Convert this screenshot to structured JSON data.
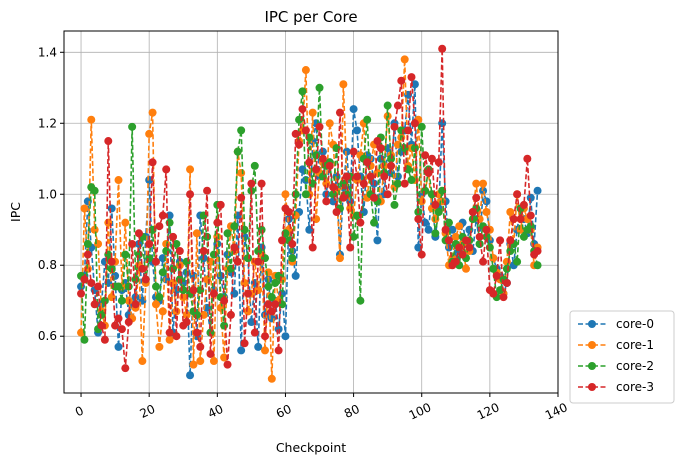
{
  "chart_data": {
    "type": "line",
    "title": "IPC per Core",
    "xlabel": "Checkpoint",
    "ylabel": "IPC",
    "xlim": [
      -5,
      140
    ],
    "ylim": [
      0.44,
      1.46
    ],
    "xticks": [
      0,
      20,
      40,
      60,
      80,
      100,
      120,
      140
    ],
    "yticks": [
      0.6,
      0.8,
      1.0,
      1.2,
      1.4
    ],
    "xtick_labels": [
      "0",
      "20",
      "40",
      "60",
      "80",
      "100",
      "120",
      "140"
    ],
    "ytick_labels": [
      "0.6",
      "0.8",
      "1.0",
      "1.2",
      "1.4"
    ],
    "grid": true,
    "legend_position": "lower-right-outside",
    "line_style": "dashed",
    "marker": "circle",
    "x_start": 0,
    "series": [
      {
        "name": "core-0",
        "color": "#1f77b4",
        "values": [
          0.74,
          0.77,
          0.98,
          0.85,
          0.73,
          0.61,
          0.69,
          0.81,
          0.75,
          0.96,
          0.77,
          0.57,
          0.73,
          0.75,
          0.66,
          0.69,
          0.71,
          0.86,
          0.7,
          0.88,
          1.04,
          0.81,
          0.71,
          0.7,
          0.82,
          0.76,
          0.94,
          0.61,
          0.73,
          0.81,
          0.75,
          0.78,
          0.49,
          0.77,
          0.6,
          0.94,
          0.82,
          0.68,
          0.61,
          0.73,
          0.86,
          0.77,
          0.71,
          0.83,
          0.78,
          0.72,
          0.94,
          0.56,
          0.88,
          0.82,
          0.64,
          0.75,
          0.57,
          0.85,
          0.66,
          0.76,
          0.65,
          0.7,
          0.62,
          0.72,
          0.6,
          0.93,
          0.84,
          0.77,
          0.95,
          1.07,
          1.04,
          0.9,
          1.15,
          1.2,
          1.05,
          1.12,
          1.0,
          1.09,
          0.98,
          1.05,
          0.83,
          1.02,
          1.12,
          0.98,
          1.24,
          1.18,
          1.05,
          0.95,
          1.11,
          1.1,
          1.03,
          0.87,
          1.1,
          1.0,
          1.13,
          1.06,
          1.2,
          1.05,
          1.12,
          1.18,
          1.28,
          1.14,
          1.31,
          0.85,
          1.0,
          0.92,
          0.9,
          1.0,
          0.88,
          0.96,
          1.2,
          0.98,
          0.85,
          0.9,
          0.82,
          0.84,
          0.92,
          0.86,
          0.9,
          0.84,
          0.93,
          0.86,
          1.01,
          0.98,
          0.87,
          0.82,
          0.79,
          0.77,
          0.72,
          0.75,
          0.86,
          0.8,
          0.9,
          0.96,
          0.93,
          0.89,
          0.99,
          0.86,
          1.01
        ]
      },
      {
        "name": "core-1",
        "color": "#ff7f0e",
        "values": [
          0.61,
          0.96,
          0.79,
          1.21,
          0.9,
          0.86,
          0.67,
          0.63,
          0.92,
          0.71,
          0.81,
          1.04,
          0.74,
          0.92,
          0.7,
          0.65,
          0.68,
          0.8,
          0.53,
          0.75,
          1.17,
          1.23,
          0.69,
          0.57,
          0.67,
          0.86,
          0.59,
          0.75,
          0.67,
          0.8,
          0.71,
          0.66,
          1.07,
          0.52,
          0.89,
          0.53,
          0.66,
          0.76,
          0.81,
          0.53,
          0.88,
          0.68,
          0.54,
          0.79,
          0.91,
          0.84,
          1.12,
          1.06,
          0.75,
          0.67,
          0.72,
          0.81,
          0.73,
          0.83,
          0.56,
          0.78,
          0.48,
          0.77,
          0.7,
          0.76,
          1.0,
          0.9,
          0.81,
          0.94,
          1.15,
          1.18,
          1.35,
          1.0,
          1.23,
          0.93,
          1.06,
          1.09,
          1.03,
          1.2,
          1.14,
          1.01,
          0.82,
          1.31,
          1.05,
          0.96,
          0.94,
          1.04,
          1.11,
          1.2,
          0.99,
          1.08,
          1.14,
          1.06,
          0.98,
          1.08,
          1.22,
          1.11,
          1.02,
          1.14,
          1.16,
          1.38,
          1.08,
          1.13,
          1.04,
          1.21,
          0.98,
          1.01,
          1.06,
          0.96,
          0.93,
          1.0,
          0.98,
          0.89,
          0.8,
          0.82,
          0.88,
          0.91,
          0.86,
          0.79,
          0.84,
          0.95,
          1.03,
          0.93,
          1.03,
          0.95,
          0.9,
          0.82,
          0.78,
          0.76,
          0.72,
          0.81,
          0.95,
          0.86,
          1.0,
          0.9,
          0.96,
          0.93,
          0.9,
          0.8,
          0.85
        ]
      },
      {
        "name": "core-2",
        "color": "#2ca02c",
        "values": [
          0.77,
          0.59,
          0.86,
          1.02,
          1.01,
          0.62,
          0.66,
          0.7,
          0.83,
          0.79,
          0.74,
          0.74,
          0.7,
          0.83,
          0.74,
          1.19,
          0.76,
          0.83,
          0.88,
          0.76,
          0.82,
          0.9,
          0.74,
          0.71,
          0.78,
          0.84,
          0.92,
          0.79,
          0.86,
          0.76,
          0.73,
          0.81,
          0.72,
          0.67,
          0.66,
          0.73,
          0.94,
          0.88,
          0.61,
          0.83,
          0.97,
          0.71,
          0.63,
          0.89,
          0.79,
          0.91,
          1.12,
          1.18,
          0.9,
          0.82,
          1.01,
          1.08,
          0.84,
          0.9,
          0.82,
          0.74,
          0.71,
          0.75,
          0.77,
          0.69,
          0.89,
          0.87,
          0.82,
          1.0,
          1.21,
          1.29,
          1.0,
          1.16,
          1.03,
          1.11,
          1.3,
          1.05,
          1.08,
          1.09,
          1.0,
          1.13,
          0.96,
          1.03,
          1.0,
          1.05,
          0.88,
          0.94,
          0.7,
          1.1,
          1.21,
          1.0,
          0.92,
          0.98,
          1.16,
          1.06,
          1.25,
          1.1,
          0.97,
          1.03,
          1.18,
          1.13,
          1.07,
          1.04,
          1.13,
          0.95,
          1.19,
          1.01,
          1.07,
          1.0,
          0.89,
          0.95,
          1.01,
          0.87,
          0.92,
          0.81,
          0.86,
          0.8,
          0.88,
          0.82,
          0.87,
          0.93,
          0.96,
          0.86,
          0.91,
          0.88,
          0.85,
          0.79,
          0.71,
          0.73,
          0.76,
          0.79,
          0.84,
          0.86,
          0.81,
          0.96,
          0.88,
          0.9,
          0.91,
          0.84,
          0.8
        ]
      },
      {
        "name": "core-3",
        "color": "#d62728",
        "values": [
          0.72,
          0.76,
          0.83,
          0.75,
          0.69,
          0.74,
          0.63,
          0.59,
          1.15,
          0.81,
          0.63,
          0.65,
          0.62,
          0.51,
          0.64,
          0.86,
          0.69,
          0.89,
          0.79,
          0.76,
          0.86,
          1.09,
          0.81,
          0.91,
          0.94,
          1.07,
          0.61,
          0.88,
          0.6,
          0.84,
          0.63,
          0.64,
          1.0,
          0.73,
          0.61,
          0.57,
          0.84,
          1.01,
          0.55,
          0.72,
          0.92,
          0.97,
          0.7,
          0.52,
          0.66,
          0.85,
          0.81,
          0.99,
          0.58,
          0.72,
          1.03,
          0.61,
          0.81,
          1.03,
          0.6,
          0.69,
          0.67,
          0.69,
          0.56,
          0.87,
          0.96,
          0.95,
          0.86,
          1.17,
          1.14,
          1.24,
          1.18,
          1.09,
          0.85,
          1.07,
          1.19,
          1.1,
          0.98,
          1.08,
          1.02,
          0.95,
          1.23,
          0.99,
          1.05,
          0.85,
          1.12,
          1.05,
          0.92,
          1.03,
          1.09,
          1.05,
          0.99,
          1.15,
          1.13,
          1.05,
          1.0,
          1.08,
          1.19,
          1.25,
          1.32,
          1.03,
          1.18,
          1.33,
          1.2,
          0.93,
          0.83,
          1.11,
          1.06,
          1.1,
          0.97,
          1.09,
          1.41,
          0.9,
          0.87,
          0.8,
          0.81,
          0.85,
          0.83,
          0.87,
          0.85,
          0.95,
          0.99,
          0.88,
          0.81,
          0.9,
          0.73,
          0.72,
          0.77,
          0.87,
          0.71,
          0.75,
          0.87,
          0.93,
          1.0,
          0.93,
          0.97,
          1.1,
          0.94,
          0.83,
          0.84
        ]
      }
    ]
  }
}
